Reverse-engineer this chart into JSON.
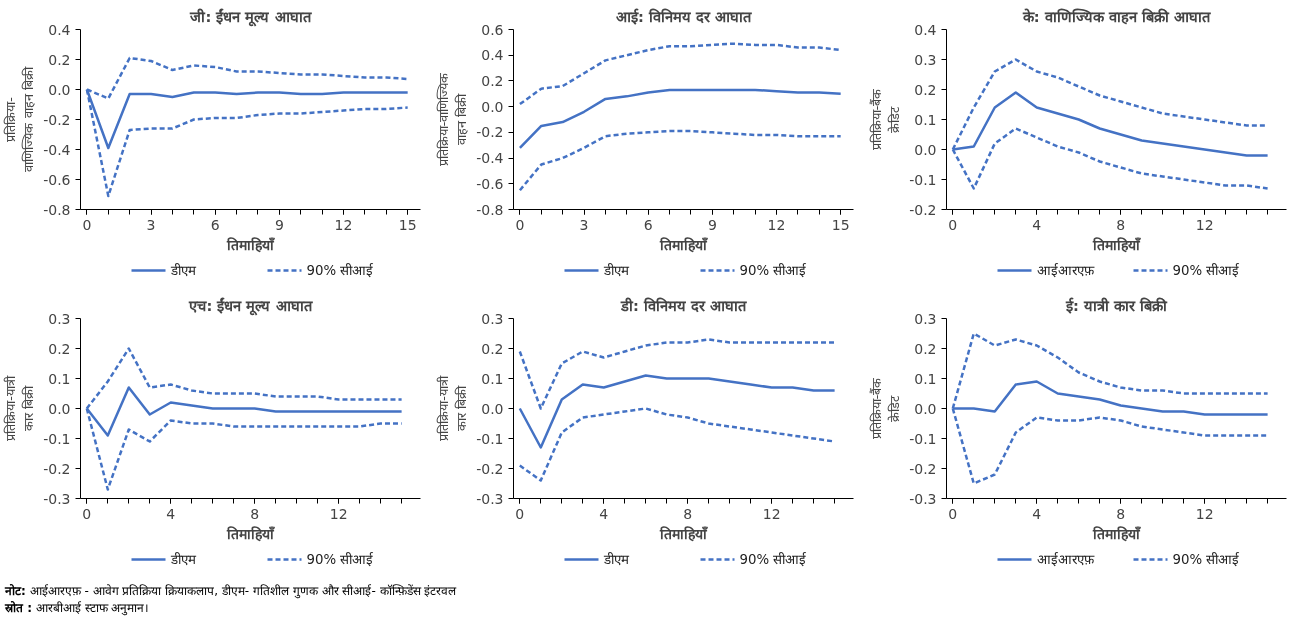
{
  "chart_data": [
    {
      "type": "line",
      "title": "जी: ईंधन मूल्य आघात",
      "xlabel": "तिमाहियाँ",
      "ylabel": "प्रतिक्रिया- वाणिज्यिक वाहन बिक्री",
      "x": [
        0,
        1,
        2,
        3,
        4,
        5,
        6,
        7,
        8,
        9,
        10,
        11,
        12,
        13,
        14,
        15
      ],
      "xlim": [
        -0.3,
        15.6
      ],
      "xticks": [
        0,
        3,
        6,
        9,
        12,
        15
      ],
      "ylim": [
        -0.8,
        0.4
      ],
      "yticks": [
        {
          "value": -0.8,
          "label": "-0.8"
        },
        {
          "value": -0.6,
          "label": "-0.6"
        },
        {
          "value": -0.4,
          "label": "-0.4"
        },
        {
          "value": -0.2,
          "label": "-0.2"
        },
        {
          "value": 0,
          "label": "0.0"
        },
        0.2,
        0.4
      ],
      "grid": false,
      "legend": "bottom",
      "series": [
        {
          "name": "डीएम",
          "color": "#4472c4",
          "line_style": "solid",
          "values": [
            0,
            -0.39,
            -0.03,
            -0.03,
            -0.05,
            -0.02,
            -0.02,
            -0.03,
            -0.02,
            -0.02,
            -0.03,
            -0.03,
            -0.02,
            -0.02,
            -0.02,
            -0.02
          ]
        },
        {
          "name": "90% सीआई",
          "color": "#4472c4",
          "line_style": "dashed",
          "values": [
            0,
            -0.06,
            0.21,
            0.19,
            0.13,
            0.16,
            0.15,
            0.12,
            0.12,
            0.11,
            0.1,
            0.1,
            0.09,
            0.08,
            0.08,
            0.07
          ]
        },
        {
          "color": "#4472c4",
          "line_style": "dashed",
          "values": [
            0,
            -0.71,
            -0.27,
            -0.26,
            -0.26,
            -0.2,
            -0.19,
            -0.19,
            -0.17,
            -0.16,
            -0.16,
            -0.15,
            -0.14,
            -0.13,
            -0.13,
            -0.12
          ]
        }
      ]
    },
    {
      "type": "line",
      "title": "आई: विनिमय दर आघात",
      "xlabel": "तिमाहियाँ",
      "ylabel": "प्रतिक्रिया-वाणिज्यिक वाहन बिक्री",
      "x": [
        0,
        1,
        2,
        3,
        4,
        5,
        6,
        7,
        8,
        9,
        10,
        11,
        12,
        13,
        14,
        15
      ],
      "xlim": [
        -0.3,
        15.6
      ],
      "xticks": [
        0,
        3,
        6,
        9,
        12,
        15
      ],
      "ylim": [
        -0.8,
        0.6
      ],
      "yticks": [
        {
          "value": -0.8,
          "label": "-0.8"
        },
        {
          "value": -0.6,
          "label": "-0.6"
        },
        {
          "value": -0.4,
          "label": "-0.4"
        },
        {
          "value": -0.2,
          "label": "-0.2"
        },
        {
          "value": 0,
          "label": "0.0"
        },
        0.2,
        0.4,
        0.6
      ],
      "grid": false,
      "legend": "bottom",
      "series": [
        {
          "name": "डीएम",
          "color": "#4472c4",
          "line_style": "solid",
          "values": [
            -0.32,
            -0.15,
            -0.12,
            -0.04,
            0.06,
            0.08,
            0.11,
            0.13,
            0.13,
            0.13,
            0.13,
            0.13,
            0.12,
            0.11,
            0.11,
            0.1
          ]
        },
        {
          "name": "90% सीआई",
          "color": "#4472c4",
          "line_style": "dashed",
          "values": [
            0.02,
            0.14,
            0.16,
            0.26,
            0.36,
            0.4,
            0.44,
            0.47,
            0.47,
            0.48,
            0.49,
            0.48,
            0.48,
            0.46,
            0.46,
            0.44
          ]
        },
        {
          "color": "#4472c4",
          "line_style": "dashed",
          "values": [
            -0.65,
            -0.45,
            -0.4,
            -0.32,
            -0.23,
            -0.21,
            -0.2,
            -0.19,
            -0.19,
            -0.2,
            -0.21,
            -0.22,
            -0.22,
            -0.23,
            -0.23,
            -0.23
          ]
        }
      ]
    },
    {
      "type": "line",
      "title": "के: वाणिज्यिक वाहन बिक्री आघात",
      "xlabel": "तिमाहियाँ",
      "ylabel": "प्रतिक्रिया-बैंक क्रेडिट",
      "x": [
        0,
        1,
        2,
        3,
        4,
        5,
        6,
        7,
        8,
        9,
        10,
        11,
        12,
        13,
        14,
        15
      ],
      "xlim": [
        -0.3,
        15.9
      ],
      "xticks": [
        0,
        4,
        8,
        12
      ],
      "ylim": [
        -0.2,
        0.4
      ],
      "yticks": [
        {
          "value": -0.2,
          "label": "-0.2"
        },
        {
          "value": -0.1,
          "label": "-0.1"
        },
        {
          "value": 0,
          "label": "0.0"
        },
        0.1,
        0.2,
        0.3,
        0.4
      ],
      "grid": false,
      "legend": "bottom",
      "series": [
        {
          "name": "आईआरएफ़",
          "color": "#4472c4",
          "line_style": "solid",
          "values": [
            0,
            0.01,
            0.14,
            0.19,
            0.14,
            0.12,
            0.1,
            0.07,
            0.05,
            0.03,
            0.02,
            0.01,
            0,
            -0.01,
            -0.02,
            -0.02
          ]
        },
        {
          "name": "90%  सीआई",
          "color": "#4472c4",
          "line_style": "dashed",
          "values": [
            0,
            0.14,
            0.26,
            0.3,
            0.26,
            0.24,
            0.21,
            0.18,
            0.16,
            0.14,
            0.12,
            0.11,
            0.1,
            0.09,
            0.08,
            0.08
          ]
        },
        {
          "color": "#4472c4",
          "line_style": "dashed",
          "values": [
            0,
            -0.13,
            0.02,
            0.07,
            0.04,
            0.01,
            -0.01,
            -0.04,
            -0.06,
            -0.08,
            -0.09,
            -0.1,
            -0.11,
            -0.12,
            -0.12,
            -0.13
          ]
        }
      ]
    },
    {
      "type": "line",
      "title": "एच: ईंधन मूल्य आघात",
      "xlabel": "तिमाहियाँ",
      "ylabel": "प्रतिक्रिया-यात्री कार बिक्री",
      "x": [
        0,
        1,
        2,
        3,
        4,
        5,
        6,
        7,
        8,
        9,
        10,
        11,
        12,
        13,
        14,
        15
      ],
      "xlim": [
        -0.3,
        15.9
      ],
      "xticks": [
        0,
        4,
        8,
        12
      ],
      "ylim": [
        -0.3,
        0.3
      ],
      "yticks": [
        {
          "value": -0.3,
          "label": "-0.3"
        },
        {
          "value": -0.2,
          "label": "-0.2"
        },
        {
          "value": -0.1,
          "label": "-0.1"
        },
        {
          "value": 0,
          "label": "0.0"
        },
        0.1,
        0.2,
        0.3
      ],
      "grid": false,
      "legend": "bottom",
      "series": [
        {
          "name": "डीएम",
          "color": "#4472c4",
          "line_style": "solid",
          "values": [
            0,
            -0.09,
            0.07,
            -0.02,
            0.02,
            0.01,
            0,
            0,
            0,
            -0.01,
            -0.01,
            -0.01,
            -0.01,
            -0.01,
            -0.01,
            -0.01
          ]
        },
        {
          "name": "90% सीआई",
          "color": "#4472c4",
          "line_style": "dashed",
          "values": [
            0,
            0.09,
            0.2,
            0.07,
            0.08,
            0.06,
            0.05,
            0.05,
            0.05,
            0.04,
            0.04,
            0.04,
            0.03,
            0.03,
            0.03,
            0.03
          ]
        },
        {
          "color": "#4472c4",
          "line_style": "dashed",
          "values": [
            0,
            -0.27,
            -0.07,
            -0.11,
            -0.04,
            -0.05,
            -0.05,
            -0.06,
            -0.06,
            -0.06,
            -0.06,
            -0.06,
            -0.06,
            -0.06,
            -0.05,
            -0.05
          ]
        }
      ]
    },
    {
      "type": "line",
      "title": "डी: विनिमय दर आघात",
      "xlabel": "तिमाहियाँ",
      "ylabel": "प्रतिक्रिया-यात्री कार बिक्री",
      "x": [
        0,
        1,
        2,
        3,
        4,
        5,
        6,
        7,
        8,
        9,
        10,
        11,
        12,
        13,
        14,
        15
      ],
      "xlim": [
        -0.3,
        15.9
      ],
      "xticks": [
        0,
        4,
        8,
        12
      ],
      "ylim": [
        -0.3,
        0.3
      ],
      "yticks": [
        {
          "value": -0.3,
          "label": "-0.3"
        },
        {
          "value": -0.2,
          "label": "-0.2"
        },
        {
          "value": -0.1,
          "label": "-0.1"
        },
        {
          "value": 0,
          "label": "0.0"
        },
        0.1,
        0.2,
        0.3
      ],
      "grid": false,
      "legend": "bottom",
      "series": [
        {
          "name": "डीएम",
          "color": "#4472c4",
          "line_style": "solid",
          "values": [
            0,
            -0.13,
            0.03,
            0.08,
            0.07,
            0.09,
            0.11,
            0.1,
            0.1,
            0.1,
            0.09,
            0.08,
            0.07,
            0.07,
            0.06,
            0.06
          ]
        },
        {
          "name": "90% सीआई",
          "color": "#4472c4",
          "line_style": "dashed",
          "values": [
            0.19,
            0.0,
            0.15,
            0.19,
            0.17,
            0.19,
            0.21,
            0.22,
            0.22,
            0.23,
            0.22,
            0.22,
            0.22,
            0.22,
            0.22,
            0.22
          ]
        },
        {
          "color": "#4472c4",
          "line_style": "dashed",
          "values": [
            -0.19,
            -0.24,
            -0.08,
            -0.03,
            -0.02,
            -0.01,
            0.0,
            -0.02,
            -0.03,
            -0.05,
            -0.06,
            -0.07,
            -0.08,
            -0.09,
            -0.1,
            -0.11
          ]
        }
      ]
    },
    {
      "type": "line",
      "title": "ई: यात्री कार बिक्री",
      "xlabel": "तिमाहियाँ",
      "ylabel": "प्रतिक्रिया-बैंक क्रेडिट",
      "x": [
        0,
        1,
        2,
        3,
        4,
        5,
        6,
        7,
        8,
        9,
        10,
        11,
        12,
        13,
        14,
        15
      ],
      "xlim": [
        -0.3,
        15.9
      ],
      "xticks": [
        0,
        4,
        8,
        12
      ],
      "ylim": [
        -0.3,
        0.3
      ],
      "yticks": [
        {
          "value": -0.3,
          "label": "-0.3"
        },
        {
          "value": -0.2,
          "label": "-0.2"
        },
        {
          "value": -0.1,
          "label": "-0.1"
        },
        {
          "value": 0,
          "label": "0.0"
        },
        0.1,
        0.2,
        0.3
      ],
      "grid": false,
      "legend": "bottom",
      "series": [
        {
          "name": "आईआरएफ़",
          "color": "#4472c4",
          "line_style": "solid",
          "values": [
            0,
            0,
            -0.01,
            0.08,
            0.09,
            0.05,
            0.04,
            0.03,
            0.01,
            0,
            -0.01,
            -0.01,
            -0.02,
            -0.02,
            -0.02,
            -0.02
          ]
        },
        {
          "name": "90%  सीआई",
          "color": "#4472c4",
          "line_style": "dashed",
          "values": [
            0,
            0.25,
            0.21,
            0.23,
            0.21,
            0.17,
            0.12,
            0.09,
            0.07,
            0.06,
            0.06,
            0.05,
            0.05,
            0.05,
            0.05,
            0.05
          ]
        },
        {
          "color": "#4472c4",
          "line_style": "dashed",
          "values": [
            0,
            -0.25,
            -0.22,
            -0.08,
            -0.03,
            -0.04,
            -0.04,
            -0.03,
            -0.04,
            -0.06,
            -0.07,
            -0.08,
            -0.09,
            -0.09,
            -0.09,
            -0.09
          ]
        }
      ]
    },
    {
      "type": "other",
      "annotations": [
        "नोट: आईआरएफ़ - आवेग प्रतिक्रिया क्रियाकलाप, डीएम- गतिशील गुणक और सीआई- कॉन्फ़िडेंस इंटरवल",
        "स्रोत : आरबीआई स्टाफ अनुमान।"
      ]
    }
  ]
}
